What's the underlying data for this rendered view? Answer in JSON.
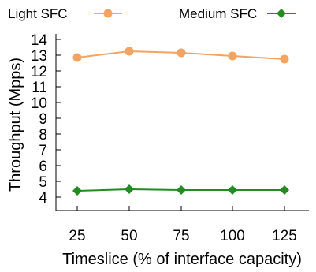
{
  "chart_data": {
    "type": "line",
    "xlabel": "Timeslice (% of interface capacity)",
    "ylabel": "Throughput (Mpps)",
    "categories": [
      "25",
      "50",
      "75",
      "100",
      "125"
    ],
    "ylim": [
      3.2,
      14
    ],
    "yticks": [
      4,
      5,
      6,
      7,
      8,
      9,
      10,
      11,
      12,
      13,
      14
    ],
    "legend_position": "top",
    "series": [
      {
        "name": "Light SFC",
        "color": "#f4a460",
        "marker": "circle",
        "values": [
          12.85,
          13.25,
          13.15,
          12.95,
          12.75
        ]
      },
      {
        "name": "Medium SFC",
        "color": "#228b22",
        "marker": "diamond",
        "values": [
          4.4,
          4.5,
          4.45,
          4.45,
          4.45
        ]
      }
    ]
  }
}
